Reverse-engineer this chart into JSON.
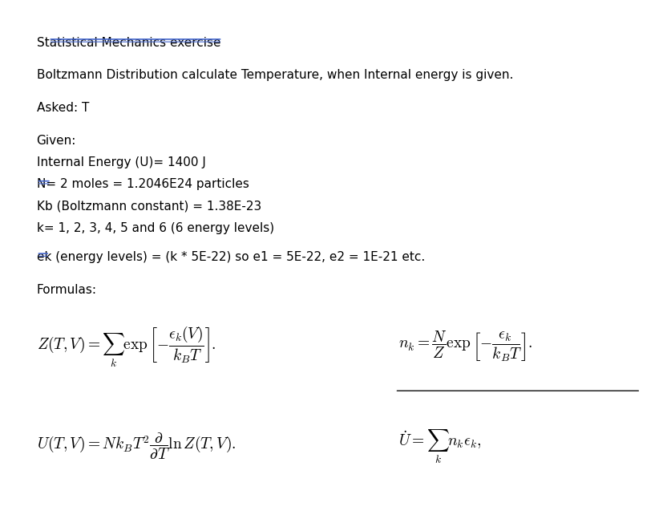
{
  "title": "Statistical Mechanics exercise",
  "subtitle": "Boltzmann Distribution calculate Temperature, when Internal energy is given.",
  "asked": "Asked: T",
  "given_header": "Given:",
  "given_lines": [
    "Internal Energy (U)= 1400 J",
    "N= 2 moles = 1.2046E24 particles",
    "Kb (Boltzmann constant) = 1.38E-23",
    "k= 1, 2, 3, 4, 5 and 6 (6 energy levels)"
  ],
  "ek_line": "ek (energy levels) = (k * 5E-22) so e1 = 5E-22, e2 = 1E-21 etc.",
  "formulas_header": "Formulas:",
  "formula1": "$Z(T,V) = \\sum_k \\exp\\left[-\\dfrac{\\epsilon_k(V)}{k_B T}\\right].$",
  "formula2": "$n_k = \\dfrac{N}{Z} \\exp\\left[-\\dfrac{\\epsilon_k}{k_B T}\\right].$",
  "formula3": "$U(T,V) = Nk_BT^2 \\dfrac{\\partial}{\\partial T} \\ln Z(T,V).$",
  "formula4": "$\\dot{U} = \\sum_k n_k \\epsilon_k,$",
  "bg_color": "#ffffff",
  "text_color": "#000000",
  "font_size_title": 11,
  "font_size_body": 11,
  "font_size_formula": 14,
  "underline_color": "#4466cc",
  "line_under_nk": true
}
